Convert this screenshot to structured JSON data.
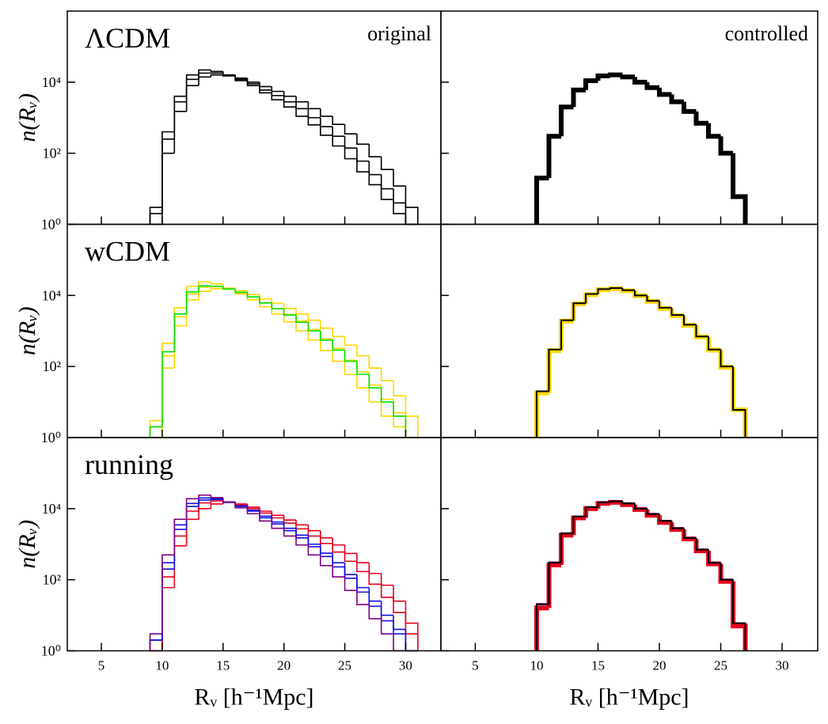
{
  "chart_data": [
    {
      "type": "histogram",
      "annotation": "ΛCDM",
      "corner_label": "original",
      "ylabel": "n(Rᵥ)",
      "log_y": true,
      "bins": [
        9,
        10,
        11,
        12,
        13,
        14,
        15,
        16,
        17,
        18,
        19,
        20,
        21,
        22,
        23,
        24,
        25,
        26,
        27,
        28,
        29,
        30,
        31
      ],
      "series": [
        {
          "color": "#000000",
          "values": [
            3,
            400,
            4000,
            16000,
            22000,
            20000,
            16000,
            11000,
            8000,
            5000,
            3200,
            2000,
            1100,
            630,
            320,
            160,
            70,
            30,
            13,
            5,
            2,
            1
          ]
        },
        {
          "color": "#000000",
          "values": [
            1,
            100,
            1500,
            8000,
            14000,
            16000,
            15500,
            13000,
            10000,
            7500,
            5500,
            4000,
            2800,
            1800,
            1100,
            650,
            350,
            180,
            80,
            35,
            12,
            3
          ]
        },
        {
          "color": "#000000",
          "values": [
            2,
            250,
            2800,
            12000,
            18000,
            18000,
            15000,
            12000,
            9000,
            6000,
            4200,
            2800,
            1800,
            1000,
            560,
            300,
            140,
            60,
            25,
            10,
            4,
            1
          ]
        }
      ],
      "xlim": [
        2.2,
        32.9
      ],
      "xticks": [
        5,
        10,
        15,
        20,
        25,
        30
      ],
      "ylim": [
        1,
        1000000
      ],
      "yticks": [
        {
          "value": 1,
          "label": "10⁰"
        },
        {
          "value": 100,
          "label": "10²"
        },
        {
          "value": 10000,
          "label": "10⁴"
        }
      ]
    },
    {
      "type": "histogram",
      "corner_label": "controlled",
      "log_y": true,
      "bins": [
        10,
        11,
        12,
        13,
        14,
        15,
        16,
        17,
        18,
        19,
        20,
        21,
        22,
        23,
        24,
        25,
        26,
        27
      ],
      "series": [
        {
          "color": "#000000",
          "values": [
            20,
            300,
            2000,
            6000,
            11000,
            15000,
            16000,
            14000,
            10000,
            7000,
            4500,
            2800,
            1500,
            700,
            300,
            100,
            6
          ]
        }
      ],
      "xlim": [
        2.2,
        32.9
      ],
      "xticks": [
        5,
        10,
        15,
        20,
        25,
        30
      ],
      "ylim": [
        1,
        1000000
      ],
      "yticks": [
        1,
        100,
        10000
      ]
    },
    {
      "type": "histogram",
      "annotation": "wCDM",
      "ylabel": "n(Rᵥ)",
      "log_y": true,
      "bins": [
        9,
        10,
        11,
        12,
        13,
        14,
        15,
        16,
        17,
        18,
        19,
        20,
        21,
        22,
        23,
        24,
        25,
        26,
        27,
        28,
        29,
        30,
        31
      ],
      "series": [
        {
          "color": "#ffd700",
          "values": [
            3,
            450,
            4500,
            18000,
            24000,
            21000,
            16000,
            11000,
            7500,
            4800,
            3000,
            1800,
            1000,
            560,
            280,
            140,
            60,
            25,
            10,
            4,
            2,
            1
          ]
        },
        {
          "color": "#ffd700",
          "values": [
            1,
            90,
            1400,
            7500,
            13000,
            15500,
            15500,
            13500,
            10500,
            8000,
            6000,
            4300,
            3000,
            2000,
            1200,
            700,
            400,
            200,
            90,
            40,
            15,
            4
          ]
        },
        {
          "color": "#ffd700",
          "values": [
            2,
            200,
            2500,
            11000,
            17000,
            17500,
            15000,
            12000,
            9000,
            6200,
            4300,
            2900,
            1900,
            1100,
            600,
            320,
            150,
            70,
            30,
            12,
            5,
            1
          ]
        },
        {
          "color": "#00e000",
          "values": [
            2,
            260,
            3000,
            12500,
            18500,
            18000,
            15200,
            12200,
            9100,
            6100,
            4200,
            2800,
            1750,
            1000,
            550,
            290,
            140,
            60,
            25,
            10,
            4
          ]
        }
      ],
      "xlim": [
        2.2,
        32.9
      ],
      "xticks": [
        5,
        10,
        15,
        20,
        25,
        30
      ],
      "ylim": [
        1,
        1000000
      ],
      "yticks": [
        {
          "value": 1,
          "label": "10⁰"
        },
        {
          "value": 100,
          "label": "10²"
        },
        {
          "value": 10000,
          "label": "10⁴"
        }
      ]
    },
    {
      "type": "histogram",
      "log_y": true,
      "bins": [
        10,
        11,
        12,
        13,
        14,
        15,
        16,
        17,
        18,
        19,
        20,
        21,
        22,
        23,
        24,
        25,
        26,
        27
      ],
      "series": [
        {
          "color": "#ffd700",
          "values": [
            18,
            280,
            1900,
            5800,
            10500,
            14500,
            15500,
            13500,
            9800,
            6800,
            4300,
            2700,
            1450,
            680,
            290,
            95,
            6
          ]
        },
        {
          "color": "#000000",
          "values": [
            20,
            300,
            2000,
            6000,
            11000,
            15000,
            16000,
            14000,
            10000,
            7000,
            4500,
            2800,
            1500,
            700,
            300,
            100,
            6
          ]
        }
      ],
      "xlim": [
        2.2,
        32.9
      ],
      "xticks": [
        5,
        10,
        15,
        20,
        25,
        30
      ],
      "ylim": [
        1,
        1000000
      ],
      "yticks": [
        1,
        100,
        10000
      ]
    },
    {
      "type": "histogram",
      "annotation": "running",
      "ylabel": "n(Rᵥ)",
      "xlabel": "Rᵥ [h⁻¹Mpc]",
      "log_y": true,
      "bins": [
        9,
        10,
        11,
        12,
        13,
        14,
        15,
        16,
        17,
        18,
        19,
        20,
        21,
        22,
        23,
        24,
        25,
        26,
        27,
        28,
        29,
        30,
        31
      ],
      "series": [
        {
          "color": "#e8001c",
          "values": [
            1,
            60,
            900,
            5000,
            10000,
            13500,
            15000,
            13500,
            11000,
            8500,
            6500,
            4800,
            3500,
            2400,
            1500,
            950,
            550,
            300,
            150,
            70,
            25,
            6
          ]
        },
        {
          "color": "#e8001c",
          "values": [
            1,
            120,
            1700,
            8500,
            14500,
            16500,
            15500,
            13000,
            10000,
            7500,
            5500,
            3900,
            2700,
            1700,
            1050,
            600,
            330,
            170,
            75,
            32,
            12,
            3
          ]
        },
        {
          "color": "#1010e0",
          "values": [
            2,
            300,
            3500,
            14000,
            20000,
            19000,
            15500,
            11500,
            8500,
            5500,
            3700,
            2400,
            1500,
            850,
            450,
            230,
            110,
            45,
            18,
            7,
            3,
            1
          ]
        },
        {
          "color": "#1010e0",
          "values": [
            2,
            200,
            2600,
            11500,
            17500,
            18000,
            15000,
            12000,
            9000,
            6100,
            4200,
            2800,
            1800,
            1000,
            560,
            300,
            140,
            60,
            25,
            10,
            4,
            1
          ]
        },
        {
          "color": "#800080",
          "values": [
            3,
            500,
            5000,
            19000,
            24000,
            20500,
            15500,
            10500,
            7200,
            4500,
            2800,
            1700,
            950,
            500,
            250,
            120,
            50,
            20,
            8,
            3,
            1,
            1
          ]
        }
      ],
      "xlim": [
        2.2,
        32.9
      ],
      "xticks": [
        5,
        10,
        15,
        20,
        25,
        30
      ],
      "ylim": [
        1,
        1000000
      ],
      "yticks": [
        {
          "value": 1,
          "label": "10⁰"
        },
        {
          "value": 100,
          "label": "10²"
        },
        {
          "value": 10000,
          "label": "10⁴"
        }
      ]
    },
    {
      "type": "histogram",
      "xlabel": "Rᵥ [h⁻¹Mpc]",
      "log_y": true,
      "bins": [
        10,
        11,
        12,
        13,
        14,
        15,
        16,
        17,
        18,
        19,
        20,
        21,
        22,
        23,
        24,
        25,
        26,
        27
      ],
      "series": [
        {
          "color": "#e8001c",
          "values": [
            16,
            260,
            1800,
            5500,
            10000,
            14000,
            15000,
            13000,
            9500,
            6500,
            4100,
            2600,
            1400,
            650,
            280,
            90,
            5
          ]
        },
        {
          "color": "#800080",
          "values": [
            21,
            310,
            2050,
            6100,
            11200,
            15200,
            16200,
            14100,
            10100,
            7100,
            4600,
            2850,
            1520,
            710,
            305,
            102,
            6
          ]
        },
        {
          "color": "#000000",
          "values": [
            20,
            300,
            2000,
            6000,
            11000,
            15000,
            16000,
            14000,
            10000,
            7000,
            4500,
            2800,
            1500,
            700,
            300,
            100,
            6
          ]
        }
      ],
      "xlim": [
        2.2,
        32.9
      ],
      "xticks": [
        5,
        10,
        15,
        20,
        25,
        30
      ],
      "ylim": [
        1,
        1000000
      ],
      "yticks": [
        1,
        100,
        10000
      ]
    }
  ]
}
